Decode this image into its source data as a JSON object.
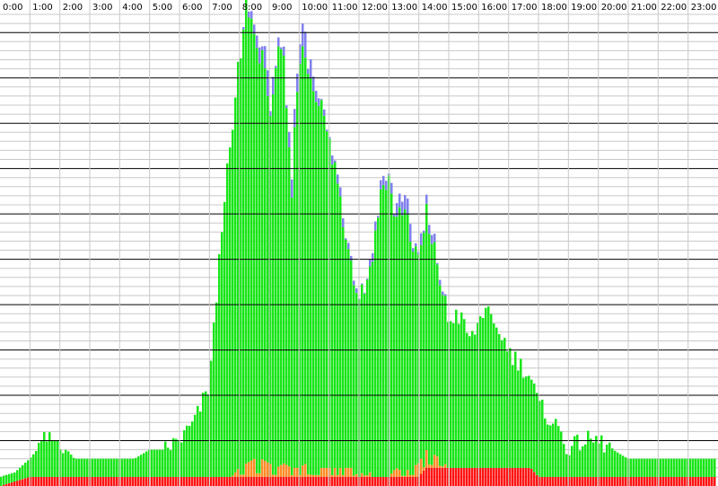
{
  "chart_data": {
    "type": "bar",
    "title": "",
    "xlabel": "",
    "ylabel": "",
    "x_ticks": [
      "0:00",
      "1:00",
      "2:00",
      "3:00",
      "4:00",
      "5:00",
      "6:00",
      "7:00",
      "8:00",
      "9:00",
      "10:00",
      "11:00",
      "12:00",
      "13:00",
      "14:00",
      "15:00",
      "16:00",
      "17:00",
      "18:00",
      "19:00",
      "20:00",
      "21:00",
      "22:00",
      "23:00"
    ],
    "ylim": [
      0,
      52
    ],
    "grid": true,
    "colors": {
      "green": "#19e619",
      "blue": "#8080ee",
      "orange": "#ff8c28",
      "red": "#ff1414",
      "grid_major": "#000000",
      "grid_minor": "#c8c8c8",
      "background": "#ffffff"
    },
    "hours": [
      0,
      0.5,
      1,
      1.5,
      2,
      2.5,
      3,
      3.5,
      4,
      4.5,
      5,
      5.5,
      6,
      6.5,
      7,
      7.25,
      7.5,
      7.75,
      8,
      8.25,
      8.5,
      8.75,
      9,
      9.25,
      9.5,
      9.75,
      10,
      10.25,
      10.5,
      10.75,
      11,
      11.25,
      11.5,
      11.75,
      12,
      12.25,
      12.5,
      12.75,
      13,
      13.25,
      13.5,
      13.75,
      14,
      14.25,
      14.5,
      14.75,
      15,
      15.25,
      15.5,
      15.75,
      16,
      16.25,
      16.5,
      16.75,
      17,
      17.25,
      17.5,
      17.75,
      18,
      18.25,
      18.5,
      18.75,
      19,
      19.5,
      20,
      20.5,
      21,
      21.5,
      22,
      22.5,
      23,
      23.5,
      24
    ],
    "series": [
      {
        "key": "red",
        "values": [
          0,
          0.5,
          1,
          1,
          1,
          1,
          1,
          1,
          1,
          1,
          1,
          1,
          1,
          1,
          1,
          1,
          1,
          1,
          1,
          1,
          1,
          1,
          1,
          1,
          1,
          1,
          1,
          1,
          1,
          1,
          1,
          1,
          1,
          1,
          1,
          1,
          1,
          1,
          1,
          1,
          1,
          1,
          1,
          2,
          2,
          2,
          2,
          2,
          2,
          2,
          2,
          2,
          2,
          2,
          2,
          2,
          2,
          2,
          1,
          1,
          1,
          1,
          1,
          1,
          1,
          1,
          1,
          1,
          1,
          1,
          1,
          1,
          1
        ]
      },
      {
        "key": "orange",
        "values": [
          0,
          0,
          0,
          0,
          0,
          0,
          0,
          0,
          0,
          0,
          0,
          0,
          0,
          0,
          0,
          0,
          0,
          0,
          1,
          1.5,
          2,
          2,
          1.5,
          1,
          1.5,
          1,
          1,
          1.5,
          1,
          1,
          1,
          1,
          1,
          1,
          0,
          1,
          0,
          0,
          0,
          1,
          0.5,
          1,
          1.5,
          2,
          1.5,
          1,
          0,
          0,
          0,
          0,
          0,
          0,
          0,
          0,
          0,
          0,
          0,
          0,
          0,
          0,
          0,
          0,
          0,
          0,
          0,
          0,
          0,
          0,
          0,
          0,
          0,
          0,
          0
        ]
      },
      {
        "key": "green",
        "values": [
          1,
          1,
          2,
          4,
          4,
          2,
          2,
          2,
          2,
          2,
          3,
          3,
          4,
          6,
          10,
          20,
          31,
          37,
          45,
          51,
          47,
          46,
          38,
          46,
          44,
          30,
          46,
          45,
          43,
          40,
          36,
          33,
          27,
          23,
          20,
          21,
          25,
          32,
          33,
          27,
          30,
          26,
          22,
          27,
          23,
          20,
          16,
          17,
          16,
          14,
          16,
          18,
          15,
          15,
          13,
          12,
          11,
          10,
          8,
          7,
          6,
          5,
          3,
          4,
          4,
          3,
          2,
          2,
          2,
          2,
          2,
          2,
          2
        ]
      },
      {
        "key": "blue",
        "values": [
          0,
          0,
          0,
          0,
          0,
          0,
          0,
          0,
          0,
          0,
          0,
          0,
          0,
          0,
          0,
          0,
          0,
          0,
          0,
          0.5,
          1,
          2,
          3,
          1,
          1,
          2,
          2,
          3,
          1.5,
          0.5,
          1,
          1,
          1,
          0.5,
          0.5,
          0.5,
          1,
          1,
          1,
          1.5,
          1.5,
          2,
          1.5,
          1,
          1,
          0.5,
          0,
          0,
          0,
          0,
          0,
          0,
          0,
          0,
          0,
          0,
          0,
          0,
          0,
          0,
          0,
          0,
          0,
          0,
          0,
          0,
          0,
          0,
          0,
          0,
          0,
          0,
          0
        ]
      }
    ]
  }
}
